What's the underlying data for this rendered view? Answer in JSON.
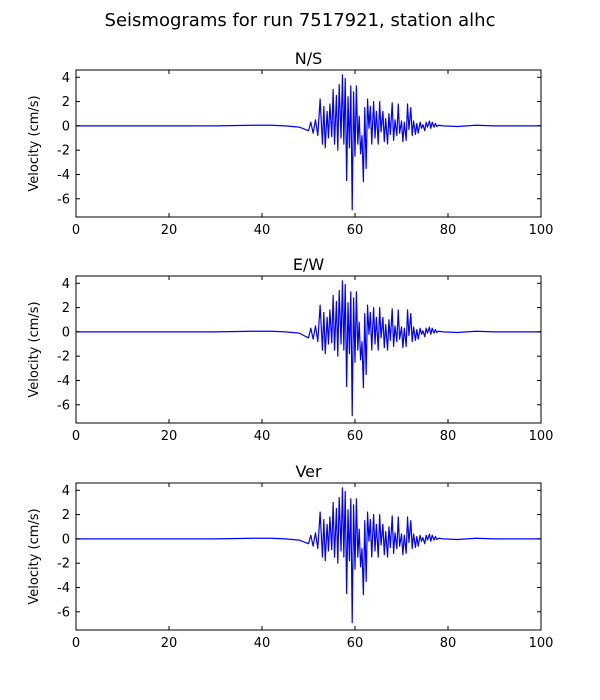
{
  "figure": {
    "title": "Seismograms for run 7517921, station alhc"
  },
  "chart_data": [
    {
      "type": "line",
      "title": "N/S",
      "xlabel": "",
      "ylabel": "Velocity (cm/s)",
      "xlim": [
        0,
        100
      ],
      "ylim": [
        -7.5,
        4.6
      ],
      "xticks": [
        0,
        20,
        40,
        60,
        80,
        100
      ],
      "yticks": [
        4,
        2,
        0,
        -2,
        -4,
        -6
      ],
      "grid": false,
      "line_color": "#0000ff",
      "series": [
        {
          "x": [
            0,
            10,
            20,
            30,
            38,
            42,
            45,
            48,
            50,
            50.5,
            51,
            51.5,
            52,
            52.5,
            53,
            53.3,
            53.6,
            54,
            54.3,
            54.6,
            55,
            55.3,
            55.6,
            56,
            56.3,
            56.6,
            57,
            57.3,
            57.6,
            57.9,
            58.2,
            58.5,
            58.8,
            59.1,
            59.4,
            59.7,
            60,
            60.3,
            60.6,
            60.9,
            61.2,
            61.5,
            61.8,
            62.1,
            62.4,
            62.7,
            63,
            63.3,
            63.6,
            64,
            64.3,
            64.6,
            65,
            65.3,
            65.6,
            66,
            66.3,
            66.6,
            67,
            67.3,
            67.6,
            68,
            68.3,
            68.6,
            69,
            69.3,
            69.6,
            70,
            70.3,
            70.6,
            71,
            71.3,
            71.6,
            72,
            72.3,
            72.6,
            73,
            73.3,
            73.6,
            74,
            74.3,
            74.6,
            75,
            75.3,
            75.6,
            76,
            76.3,
            76.6,
            77,
            77.3,
            77.6,
            78,
            79,
            82,
            86,
            90,
            95,
            100
          ],
          "y": [
            0,
            0,
            0,
            0,
            0.05,
            0.05,
            0,
            -0.1,
            -0.4,
            0.3,
            -0.6,
            0.5,
            -0.8,
            2.2,
            -1.5,
            1.6,
            -1.8,
            1.2,
            -1,
            1.8,
            -0.9,
            3,
            -1.5,
            2.5,
            -2,
            3.4,
            -1,
            4.2,
            -1.5,
            3.9,
            -4.5,
            2.4,
            -1.8,
            3.3,
            -6.9,
            2.8,
            -2.5,
            3.3,
            -1.5,
            0.8,
            -2.3,
            -0.8,
            -4.6,
            1.5,
            -3.5,
            2.2,
            -0.2,
            1.6,
            -1.5,
            2,
            -1,
            1.2,
            -1.5,
            2,
            -0.5,
            1.2,
            -1.3,
            0.6,
            -1.5,
            1,
            -0.7,
            1.9,
            -1.2,
            0.5,
            -0.8,
            1.8,
            -0.6,
            0.4,
            -1.3,
            0.3,
            -1.2,
            1.8,
            -0.3,
            1.5,
            -0.8,
            0.4,
            -0.7,
            0.2,
            -0.6,
            0.3,
            -0.2,
            0.1,
            -0.4,
            0.3,
            -0.1,
            0.4,
            -0.2,
            0.3,
            -0.1,
            0.2,
            -0.05,
            0.05,
            0,
            -0.05,
            0.05,
            0,
            0,
            0
          ]
        }
      ]
    },
    {
      "type": "line",
      "title": "E/W",
      "xlabel": "",
      "ylabel": "Velocity (cm/s)",
      "xlim": [
        0,
        100
      ],
      "ylim": [
        -7.5,
        4.6
      ],
      "xticks": [
        0,
        20,
        40,
        60,
        80,
        100
      ],
      "yticks": [
        4,
        2,
        0,
        -2,
        -4,
        -6
      ],
      "grid": false,
      "line_color": "#0000ff",
      "series": [
        {
          "x": [
            0,
            10,
            20,
            30,
            38,
            42,
            45,
            48,
            50,
            50.5,
            51,
            51.5,
            52,
            52.5,
            53,
            53.3,
            53.6,
            54,
            54.3,
            54.6,
            55,
            55.3,
            55.6,
            56,
            56.3,
            56.6,
            57,
            57.3,
            57.6,
            57.9,
            58.2,
            58.5,
            58.8,
            59.1,
            59.4,
            59.7,
            60,
            60.3,
            60.6,
            60.9,
            61.2,
            61.5,
            61.8,
            62.1,
            62.4,
            62.7,
            63,
            63.3,
            63.6,
            64,
            64.3,
            64.6,
            65,
            65.3,
            65.6,
            66,
            66.3,
            66.6,
            67,
            67.3,
            67.6,
            68,
            68.3,
            68.6,
            69,
            69.3,
            69.6,
            70,
            70.3,
            70.6,
            71,
            71.3,
            71.6,
            72,
            72.3,
            72.6,
            73,
            73.3,
            73.6,
            74,
            74.3,
            74.6,
            75,
            75.3,
            75.6,
            76,
            76.3,
            76.6,
            77,
            77.3,
            77.6,
            78,
            79,
            82,
            86,
            90,
            95,
            100
          ],
          "y": [
            0,
            0,
            0,
            0,
            0.05,
            0.05,
            0,
            -0.1,
            -0.5,
            0.3,
            -0.6,
            0.5,
            -0.8,
            2.2,
            -1.5,
            1.6,
            -1.8,
            1.2,
            -1,
            1.8,
            -0.9,
            3,
            -1.5,
            2.5,
            -2,
            3.4,
            -1,
            4.2,
            -1.5,
            3.9,
            -4.5,
            2.4,
            -1.8,
            3.3,
            -6.9,
            2.8,
            -2.5,
            3.3,
            -1.5,
            0.8,
            -2.3,
            -0.8,
            -4.6,
            1.5,
            -3.5,
            2.2,
            -0.2,
            1.6,
            -1.5,
            2,
            -1,
            1.2,
            -1.5,
            2,
            -0.5,
            1.2,
            -1.3,
            0.6,
            -1.5,
            1,
            -0.7,
            1.9,
            -1.2,
            0.5,
            -0.8,
            1.8,
            -0.6,
            0.4,
            -1.3,
            0.3,
            -1.2,
            1.8,
            -0.3,
            1.5,
            -0.8,
            0.4,
            -0.7,
            0.2,
            -0.6,
            0.3,
            -0.2,
            0.1,
            -0.4,
            0.3,
            -0.1,
            0.4,
            -0.2,
            0.3,
            -0.1,
            0.2,
            -0.05,
            0.05,
            0,
            -0.05,
            0.05,
            0,
            0,
            0
          ]
        }
      ]
    },
    {
      "type": "line",
      "title": "Ver",
      "xlabel": "",
      "ylabel": "Velocity (cm/s)",
      "xlim": [
        0,
        100
      ],
      "ylim": [
        -7.5,
        4.6
      ],
      "xticks": [
        0,
        20,
        40,
        60,
        80,
        100
      ],
      "yticks": [
        4,
        2,
        0,
        -2,
        -4,
        -6
      ],
      "grid": false,
      "line_color": "#0000ff",
      "series": [
        {
          "x": [
            0,
            10,
            20,
            30,
            38,
            42,
            45,
            48,
            50,
            50.5,
            51,
            51.5,
            52,
            52.5,
            53,
            53.3,
            53.6,
            54,
            54.3,
            54.6,
            55,
            55.3,
            55.6,
            56,
            56.3,
            56.6,
            57,
            57.3,
            57.6,
            57.9,
            58.2,
            58.5,
            58.8,
            59.1,
            59.4,
            59.7,
            60,
            60.3,
            60.6,
            60.9,
            61.2,
            61.5,
            61.8,
            62.1,
            62.4,
            62.7,
            63,
            63.3,
            63.6,
            64,
            64.3,
            64.6,
            65,
            65.3,
            65.6,
            66,
            66.3,
            66.6,
            67,
            67.3,
            67.6,
            68,
            68.3,
            68.6,
            69,
            69.3,
            69.6,
            70,
            70.3,
            70.6,
            71,
            71.3,
            71.6,
            72,
            72.3,
            72.6,
            73,
            73.3,
            73.6,
            74,
            74.3,
            74.6,
            75,
            75.3,
            75.6,
            76,
            76.3,
            76.6,
            77,
            77.3,
            77.6,
            78,
            79,
            82,
            86,
            90,
            95,
            100
          ],
          "y": [
            0,
            0,
            0,
            0,
            0.05,
            0.05,
            0,
            -0.1,
            -0.4,
            0.3,
            -0.6,
            0.5,
            -0.8,
            2.2,
            -1.5,
            1.6,
            -1.8,
            1.2,
            -1,
            1.8,
            -0.9,
            3,
            -1.5,
            2.5,
            -2,
            3.4,
            -1,
            4.2,
            -1.5,
            3.9,
            -4.5,
            2.4,
            -1.8,
            3.3,
            -6.9,
            2.8,
            -2.5,
            3.3,
            -1.5,
            0.8,
            -2.3,
            -0.8,
            -4.6,
            1.5,
            -3.5,
            2.2,
            -0.2,
            1.6,
            -1.5,
            2,
            -1,
            1.2,
            -1.5,
            2,
            -0.5,
            1.2,
            -1.3,
            0.6,
            -1.5,
            1,
            -0.7,
            1.9,
            -1.2,
            0.5,
            -0.8,
            1.8,
            -0.6,
            0.4,
            -1.3,
            0.3,
            -1.2,
            1.8,
            -0.3,
            1.5,
            -0.8,
            0.4,
            -0.7,
            0.2,
            -0.6,
            0.3,
            -0.2,
            0.1,
            -0.4,
            0.3,
            -0.1,
            0.4,
            -0.2,
            0.3,
            -0.1,
            0.2,
            -0.05,
            0.05,
            0,
            -0.05,
            0.05,
            0,
            0,
            0
          ]
        }
      ]
    }
  ]
}
